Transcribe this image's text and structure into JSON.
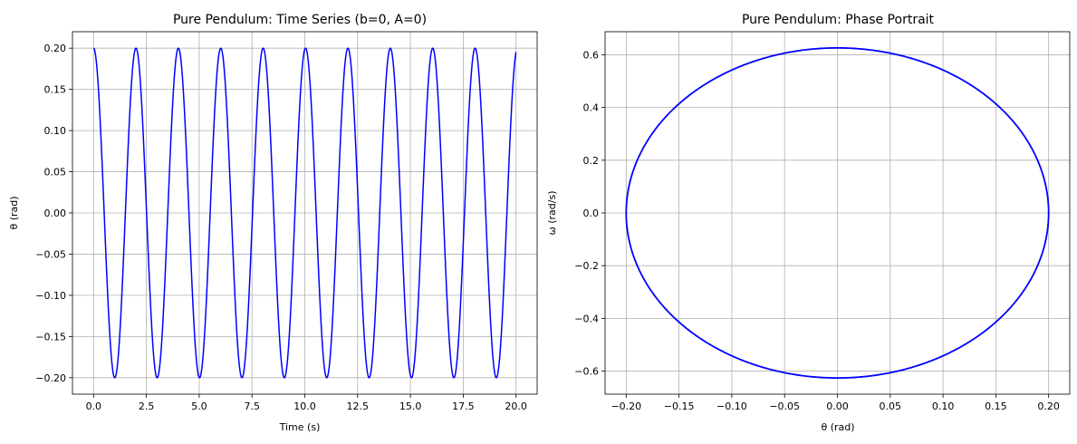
{
  "chart_data": [
    {
      "type": "line",
      "title": "Pure Pendulum: Time Series (b=0, A=0)",
      "xlabel": "Time (s)",
      "ylabel": "θ (rad)",
      "xlim": [
        -1.0,
        21.0
      ],
      "ylim": [
        -0.22,
        0.22
      ],
      "xticks": [
        0.0,
        2.5,
        5.0,
        7.5,
        10.0,
        12.5,
        15.0,
        17.5,
        20.0
      ],
      "xtick_labels": [
        "0.0",
        "2.5",
        "5.0",
        "7.5",
        "10.0",
        "12.5",
        "15.0",
        "17.5",
        "20.0"
      ],
      "yticks": [
        -0.2,
        -0.15,
        -0.1,
        -0.05,
        0.0,
        0.05,
        0.1,
        0.15,
        0.2
      ],
      "ytick_labels": [
        "−0.20",
        "−0.15",
        "−0.10",
        "−0.05",
        "0.00",
        "0.05",
        "0.10",
        "0.15",
        "0.20"
      ],
      "grid": true,
      "series": [
        {
          "color": "#0000ff",
          "model": {
            "amplitude": 0.2,
            "period_s": 2.007,
            "t_start": 0,
            "t_end": 20
          },
          "peaks_t": [
            0.0,
            2.0,
            4.0,
            6.0,
            8.0,
            10.0,
            12.0,
            14.0,
            16.0,
            18.0
          ],
          "peak_value": 0.2,
          "troughs_t": [
            1.0,
            3.0,
            5.0,
            7.0,
            9.0,
            11.0,
            13.0,
            15.0,
            17.0,
            19.0
          ],
          "trough_value": -0.2,
          "end_value": 0.19
        }
      ]
    },
    {
      "type": "line",
      "title": "Pure Pendulum: Phase Portrait",
      "xlabel": "θ (rad)",
      "ylabel": "ω (rad/s)",
      "xlim": [
        -0.22,
        0.22
      ],
      "ylim": [
        -0.6875,
        0.6875
      ],
      "xticks": [
        -0.2,
        -0.15,
        -0.1,
        -0.05,
        0.0,
        0.05,
        0.1,
        0.15,
        0.2
      ],
      "xtick_labels": [
        "−0.20",
        "−0.15",
        "−0.10",
        "−0.05",
        "0.00",
        "0.05",
        "0.10",
        "0.15",
        "0.20"
      ],
      "yticks": [
        -0.6,
        -0.4,
        -0.2,
        0.0,
        0.2,
        0.4,
        0.6
      ],
      "ytick_labels": [
        "−0.6",
        "−0.4",
        "−0.2",
        "0.0",
        "0.2",
        "0.4",
        "0.6"
      ],
      "grid": true,
      "series": [
        {
          "color": "#0000ff",
          "closed_orbit": {
            "theta_amplitude": 0.2,
            "omega_amplitude": 0.626
          }
        }
      ]
    }
  ]
}
